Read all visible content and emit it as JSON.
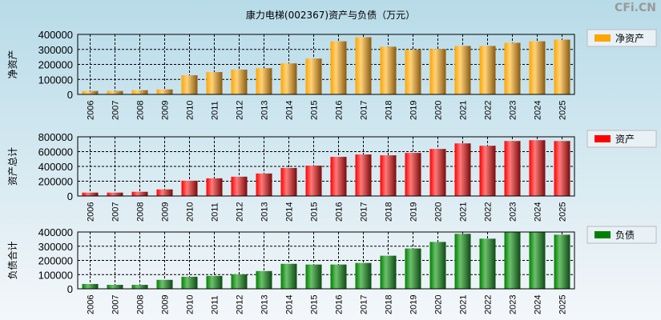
{
  "title": "康力电梯(002367)资产与负债（万元）",
  "watermark": "CFi.CN",
  "chart_data": [
    {
      "type": "bar",
      "title": "",
      "ylabel": "净资产",
      "legend": "净资产",
      "color": "#ffa500",
      "ylim": [
        0,
        400000
      ],
      "yticks": [
        0,
        100000,
        200000,
        300000,
        400000
      ],
      "categories": [
        "2006",
        "2007",
        "2008",
        "2009",
        "2010",
        "2011",
        "2012",
        "2013",
        "2014",
        "2015",
        "2016",
        "2017",
        "2018",
        "2019",
        "2020",
        "2021",
        "2022",
        "2023",
        "2024",
        "2025"
      ],
      "values": [
        23000,
        23000,
        28000,
        33000,
        128000,
        149000,
        165000,
        175000,
        207000,
        239000,
        354000,
        381000,
        318000,
        298000,
        302000,
        323000,
        323000,
        344000,
        354000,
        365000
      ]
    },
    {
      "type": "bar",
      "title": "",
      "ylabel": "资产总计",
      "legend": "资产",
      "color": "#ff0000",
      "ylim": [
        0,
        800000
      ],
      "yticks": [
        0,
        200000,
        400000,
        600000,
        800000
      ],
      "categories": [
        "2006",
        "2007",
        "2008",
        "2009",
        "2010",
        "2011",
        "2012",
        "2013",
        "2014",
        "2015",
        "2016",
        "2017",
        "2018",
        "2019",
        "2020",
        "2021",
        "2022",
        "2023",
        "2024",
        "2025"
      ],
      "values": [
        46000,
        46000,
        57000,
        89000,
        207000,
        239000,
        261000,
        304000,
        379000,
        411000,
        529000,
        561000,
        550000,
        582000,
        636000,
        711000,
        679000,
        743000,
        754000,
        743000
      ]
    },
    {
      "type": "bar",
      "title": "",
      "ylabel": "负债合计",
      "legend": "负债",
      "color": "#008000",
      "ylim": [
        0,
        400000
      ],
      "yticks": [
        0,
        100000,
        200000,
        300000,
        400000
      ],
      "categories": [
        "2006",
        "2007",
        "2008",
        "2009",
        "2010",
        "2011",
        "2012",
        "2013",
        "2014",
        "2015",
        "2016",
        "2017",
        "2018",
        "2019",
        "2020",
        "2021",
        "2022",
        "2023",
        "2024",
        "2025"
      ],
      "values": [
        34000,
        28000,
        28000,
        63000,
        85000,
        91000,
        102000,
        125000,
        176000,
        171000,
        171000,
        182000,
        233000,
        284000,
        330000,
        387000,
        353000,
        400000,
        400000,
        381000
      ]
    }
  ]
}
